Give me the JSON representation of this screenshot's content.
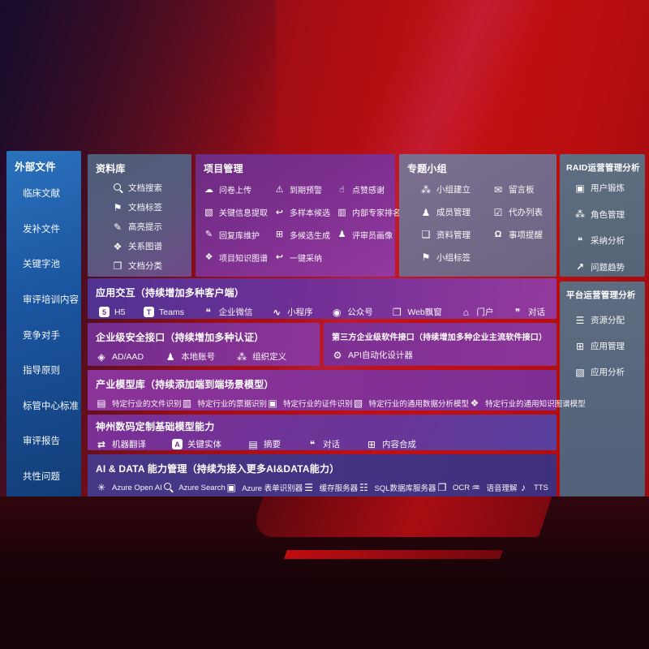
{
  "left_sidebar": {
    "title": "外部文件",
    "items": [
      "临床文献",
      "发补文件",
      "关键字池",
      "审评培训内容",
      "竞争对手",
      "指导原则",
      "标管中心标准",
      "审评报告",
      "共性问题"
    ]
  },
  "datalib": {
    "title": "资料库",
    "items": [
      "文档搜索",
      "文档标签",
      "高亮提示",
      "关系图谱",
      "文档分类"
    ]
  },
  "project": {
    "title": "项目管理",
    "col1": [
      "问卷上传",
      "关键信息提取",
      "回复库维护",
      "项目知识图谱"
    ],
    "col2": [
      "到期预警",
      "多样本候选",
      "多候选生成",
      "一键采纳"
    ],
    "col3": [
      "点赞感谢",
      "内部专家排名",
      "评审员画像"
    ]
  },
  "groups": {
    "title": "专题小组",
    "col1": [
      "小组建立",
      "成员管理",
      "资料管理",
      "小组标签"
    ],
    "col2": [
      "留言板",
      "代办列表",
      "事项提醒"
    ]
  },
  "raid": {
    "title": "RAID运营管理分析",
    "items": [
      "用户锻炼",
      "角色管理",
      "采纳分析",
      "问题趋势"
    ]
  },
  "platform": {
    "title": "平台运营管理分析",
    "items": [
      "资源分配",
      "应用管理",
      "应用分析"
    ]
  },
  "interact": {
    "title": "应用交互（持续增加多种客户端）",
    "items": [
      "H5",
      "Teams",
      "企业微信",
      "小程序",
      "公众号",
      "Web飘窗",
      "门户",
      "对话"
    ]
  },
  "security": {
    "title": "企业级安全接口（持续增加多种认证）",
    "items": [
      "AD/AAD",
      "本地账号",
      "组织定义"
    ]
  },
  "thirdparty": {
    "title": "第三方企业级软件接口（持续增加多种企业主流软件接口）",
    "items": [
      "API自动化设计器"
    ]
  },
  "models": {
    "title": "产业模型库（持续添加端到端场景模型）",
    "items": [
      "特定行业的文件识别",
      "特定行业的票据识别",
      "特定行业的证件识别",
      "特定行业的通用数据分析模型",
      "特定行业的通用知识图谱模型"
    ]
  },
  "basemodel": {
    "title": "神州数码定制基础模型能力",
    "items": [
      "机器翻译",
      "关键实体",
      "摘要",
      "对话",
      "内容合成"
    ]
  },
  "aidata": {
    "title": "AI & DATA 能力管理（持续为接入更多AI&DATA能力）",
    "items": [
      "Azure Open AI",
      "Azure Search",
      "Azure 表单识别器",
      "缓存服务器",
      "SQL数据库服务器",
      "OCR",
      "语音理解",
      "TTS"
    ]
  },
  "colors": {
    "background_red": "#b90e12",
    "sidebar_blue": "#1b55a0",
    "panel_slate": "#5c6b7e",
    "panel_purple": "#7d2f92",
    "panel_indigo": "#44337f"
  }
}
